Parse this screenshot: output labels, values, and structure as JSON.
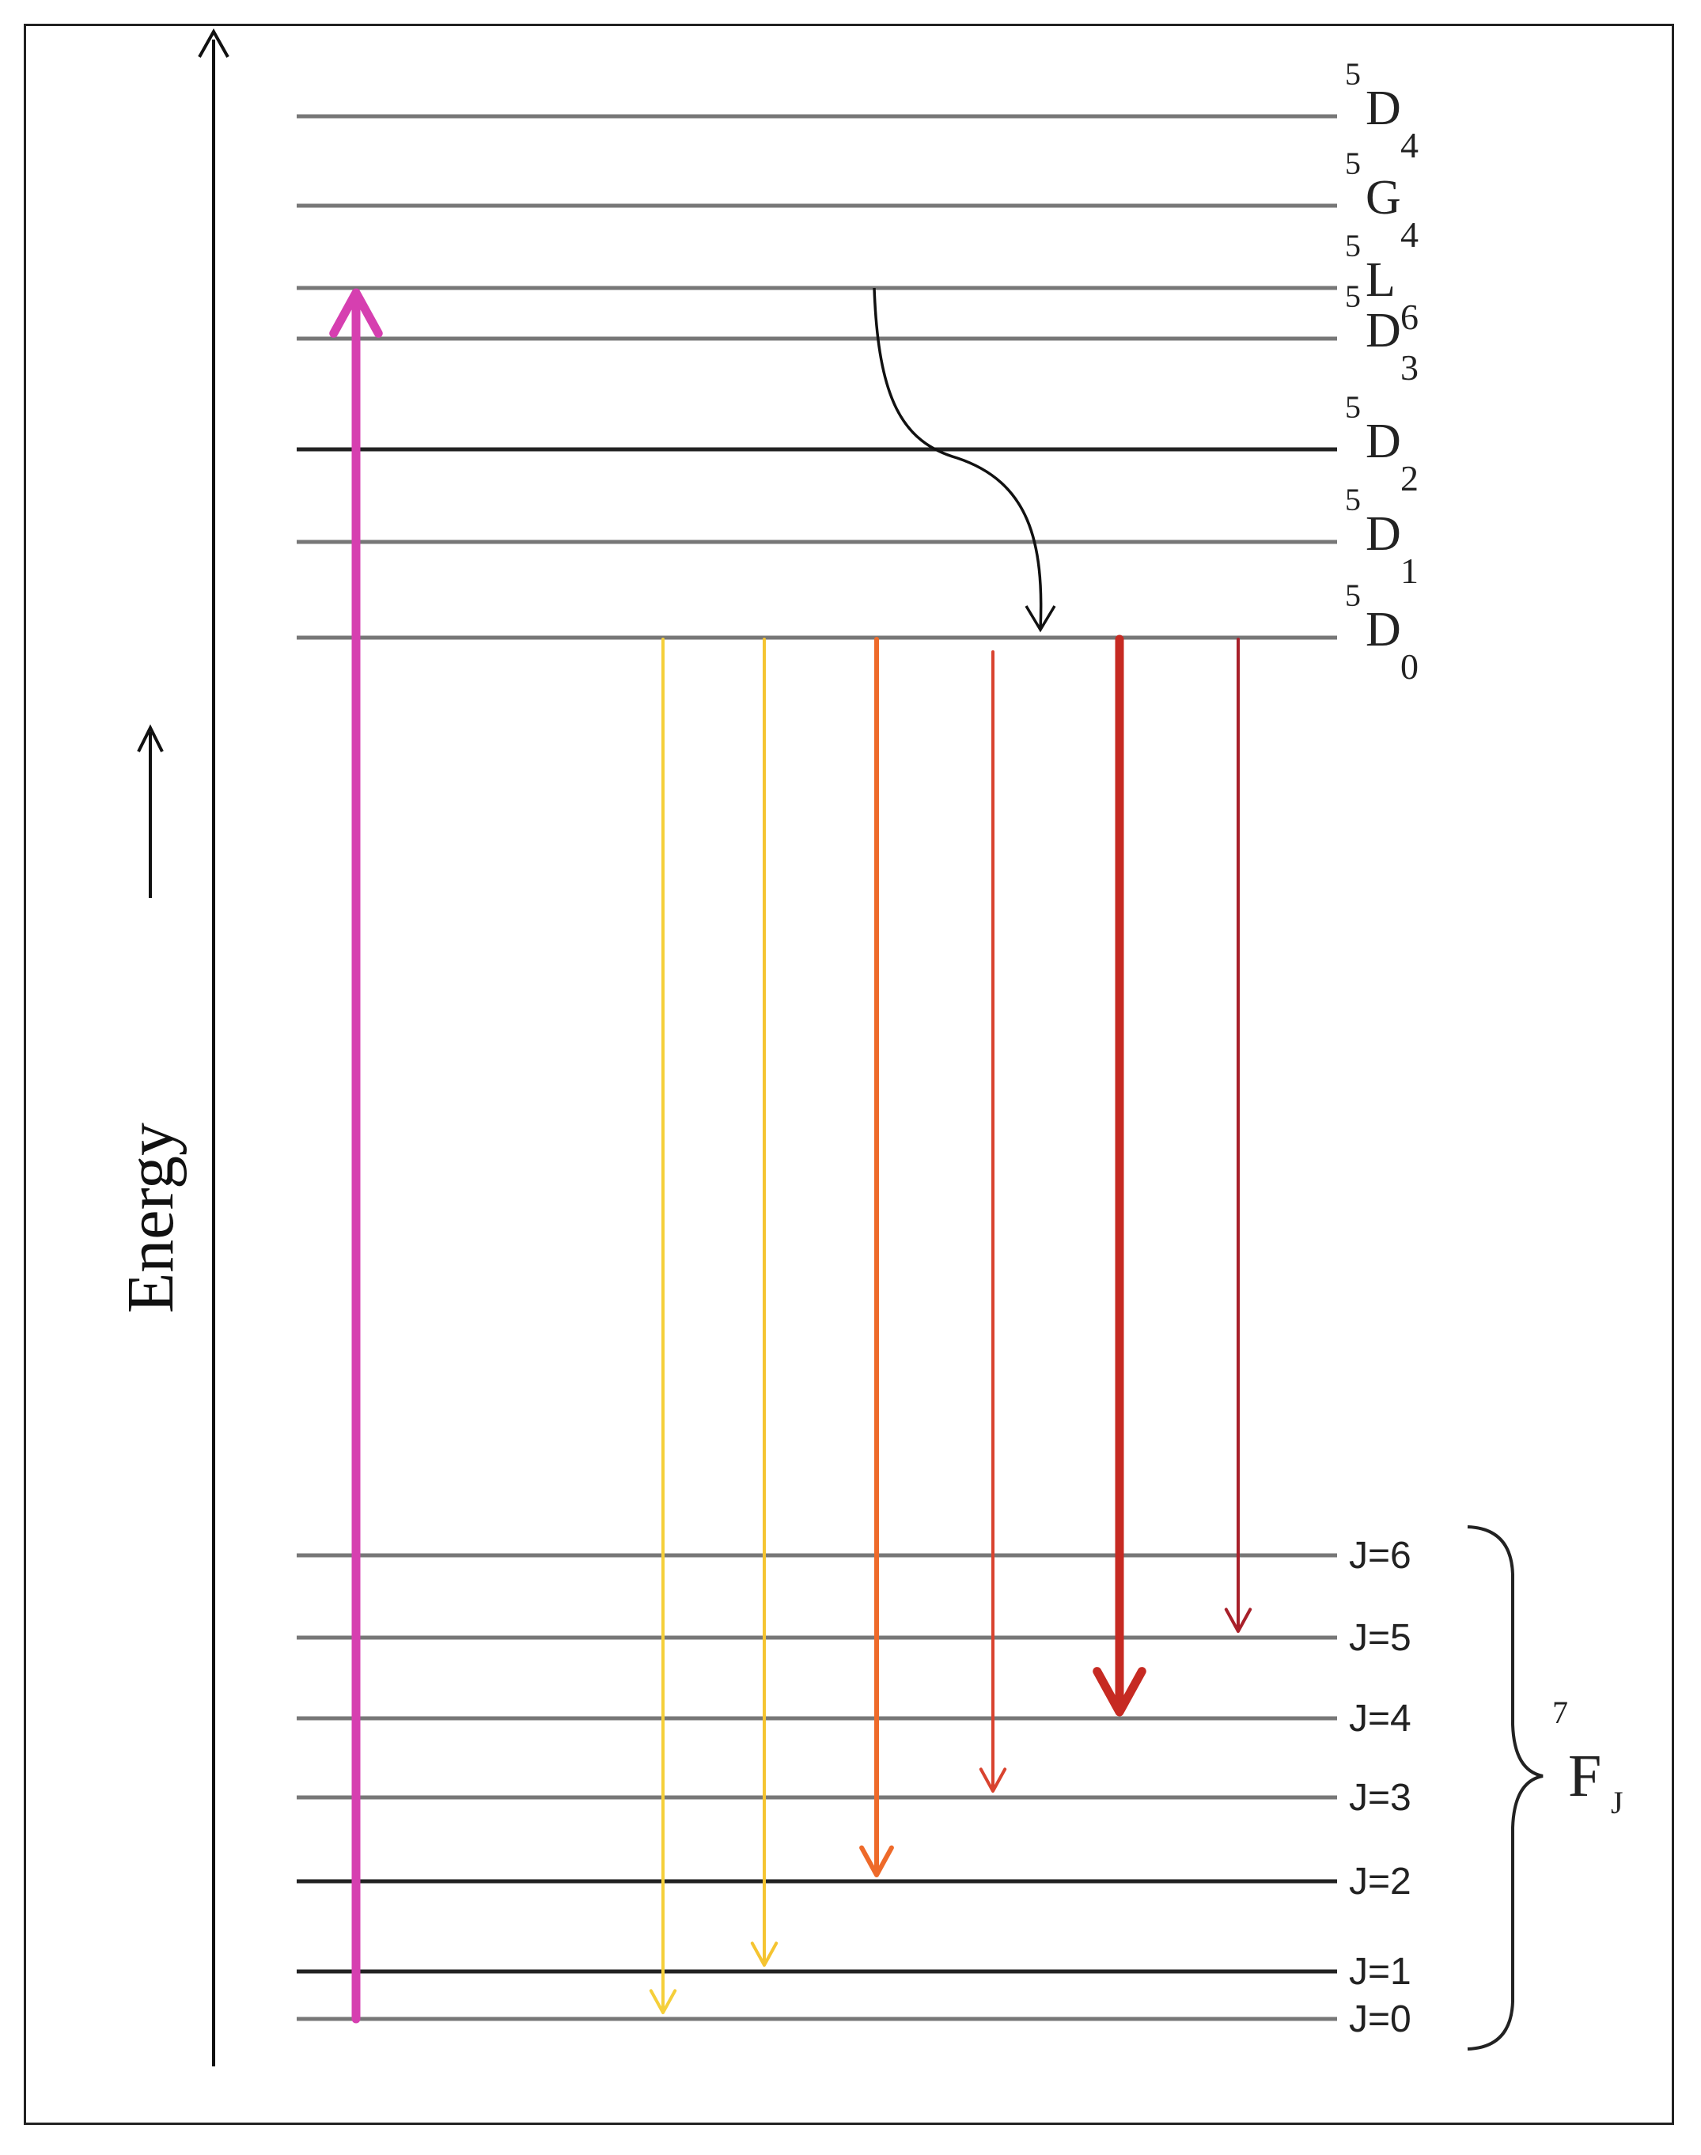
{
  "axis": {
    "title": "Energy"
  },
  "excited_levels": [
    {
      "id": "5D4",
      "mult": "5",
      "letter": "D",
      "sub": "4"
    },
    {
      "id": "5G4",
      "mult": "5",
      "letter": "G",
      "sub": "4"
    },
    {
      "id": "5L6",
      "mult": "5",
      "letter": "L",
      "sub": "6"
    },
    {
      "id": "5D3",
      "mult": "5",
      "letter": "D",
      "sub": "3"
    },
    {
      "id": "5D2",
      "mult": "5",
      "letter": "D",
      "sub": "2"
    },
    {
      "id": "5D1",
      "mult": "5",
      "letter": "D",
      "sub": "1"
    },
    {
      "id": "5D0",
      "mult": "5",
      "letter": "D",
      "sub": "0"
    }
  ],
  "ground_levels": [
    {
      "label": "J=6"
    },
    {
      "label": "J=5"
    },
    {
      "label": "J=4"
    },
    {
      "label": "J=3"
    },
    {
      "label": "J=2"
    },
    {
      "label": "J=1"
    },
    {
      "label": "J=0"
    }
  ],
  "ground_term": {
    "mult": "7",
    "letter": "F",
    "sub": "J"
  },
  "excitation": {
    "from": "J=0",
    "to": "5L6",
    "color": "#d63fb0"
  },
  "relaxation": {
    "from": "5L6",
    "to": "5D0"
  },
  "emissions": [
    {
      "from": "5D0",
      "to": "J=0",
      "color": "#f5cf3a",
      "weight": "thin"
    },
    {
      "from": "5D0",
      "to": "J=1",
      "color": "#f5c431",
      "weight": "thin"
    },
    {
      "from": "5D0",
      "to": "J=2",
      "color": "#ee6a2a",
      "weight": "medium"
    },
    {
      "from": "5D0",
      "to": "J=3",
      "color": "#d9432f",
      "weight": "thin"
    },
    {
      "from": "5D0",
      "to": "J=4",
      "color": "#c62a22",
      "weight": "thick"
    },
    {
      "from": "5D0",
      "to": "J=5",
      "color": "#a8202a",
      "weight": "thin"
    }
  ]
}
